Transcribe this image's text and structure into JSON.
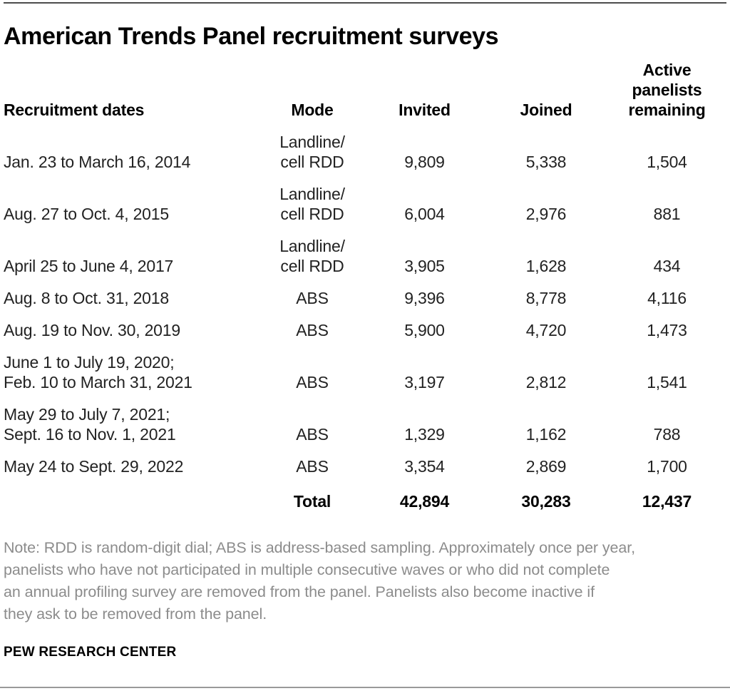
{
  "colors": {
    "rule_top": "#4d4d4d",
    "rule_bottom": "#9a9a9a",
    "body_text": "#222222",
    "note_gray": "#8c8c8c"
  },
  "chart_data": {
    "type": "table",
    "title": "American Trends Panel recruitment surveys",
    "columns": [
      "Recruitment dates",
      "Mode",
      "Invited",
      "Joined",
      "Active panelists remaining"
    ],
    "header": {
      "dates": "Recruitment dates",
      "mode": "Mode",
      "invited": "Invited",
      "joined": "Joined",
      "active": "Active\npanelists\nremaining"
    },
    "rows": [
      {
        "dates": "Jan. 23 to March 16, 2014",
        "mode": "Landline/\ncell RDD",
        "invited": "9,809",
        "joined": "5,338",
        "active": "1,504"
      },
      {
        "dates": "Aug. 27 to Oct. 4, 2015",
        "mode": "Landline/\ncell RDD",
        "invited": "6,004",
        "joined": "2,976",
        "active": "881"
      },
      {
        "dates": "April 25 to June 4, 2017",
        "mode": "Landline/\ncell RDD",
        "invited": "3,905",
        "joined": "1,628",
        "active": "434"
      },
      {
        "dates": "Aug. 8 to Oct. 31, 2018",
        "mode": "ABS",
        "invited": "9,396",
        "joined": "8,778",
        "active": "4,116"
      },
      {
        "dates": "Aug. 19 to Nov. 30, 2019",
        "mode": "ABS",
        "invited": "5,900",
        "joined": "4,720",
        "active": "1,473"
      },
      {
        "dates": "June 1 to July 19, 2020;\nFeb. 10 to March 31, 2021",
        "mode": "ABS",
        "invited": "3,197",
        "joined": "2,812",
        "active": "1,541"
      },
      {
        "dates": "May 29 to July 7, 2021;\nSept. 16 to Nov. 1, 2021",
        "mode": "ABS",
        "invited": "1,329",
        "joined": "1,162",
        "active": "788"
      },
      {
        "dates": "May 24 to Sept. 29, 2022",
        "mode": "ABS",
        "invited": "3,354",
        "joined": "2,869",
        "active": "1,700"
      }
    ],
    "total": {
      "label": "Total",
      "invited": "42,894",
      "joined": "30,283",
      "active": "12,437"
    },
    "note": "Note: RDD is random-digit dial; ABS is address-based sampling. Approximately once per year,\npanelists who have not participated in multiple consecutive waves or who did not complete\nan annual profiling survey are removed from the panel. Panelists also become inactive if\nthey ask to be removed from the panel.",
    "source": "PEW RESEARCH CENTER",
    "layout": {
      "gridlines": "off",
      "row_borders": "none",
      "legend": "none"
    }
  }
}
